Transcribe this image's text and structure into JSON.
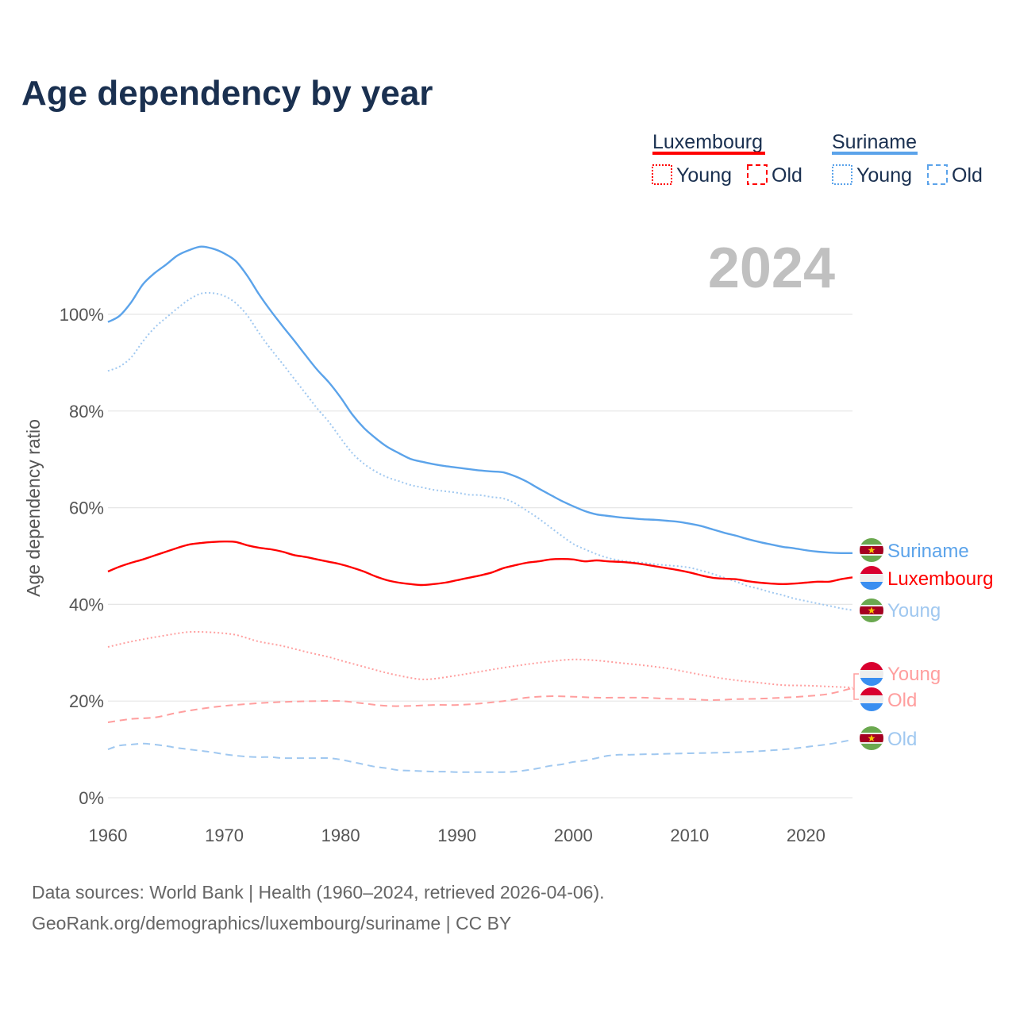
{
  "title": "Age dependency by year",
  "year_display": "2024",
  "legend": {
    "groups": [
      {
        "country": "Luxembourg",
        "color": "#ff0000",
        "items": [
          "Young",
          "Old"
        ]
      },
      {
        "country": "Suriname",
        "color": "#5ba3ea",
        "items": [
          "Young",
          "Old"
        ]
      }
    ]
  },
  "end_labels": {
    "suriname_total": "Suriname",
    "luxembourg_total": "Luxembourg",
    "suriname_young": "Young",
    "luxembourg_young": "Young",
    "luxembourg_old": "Old",
    "suriname_old": "Old"
  },
  "footer": {
    "line1": "Data sources: World Bank | Health (1960–2024, retrieved 2026-04-06).",
    "line2": "GeoRank.org/demographics/luxembourg/suriname | CC BY"
  },
  "chart_data": {
    "type": "line",
    "title": "Age dependency by year",
    "xlabel": "",
    "ylabel": "Age dependency ratio",
    "xlim": [
      1960,
      2024
    ],
    "ylim": [
      0,
      115
    ],
    "x_ticks": [
      "1960",
      "1970",
      "1980",
      "1990",
      "2000",
      "2010",
      "2020"
    ],
    "y_ticks": [
      "0%",
      "20%",
      "40%",
      "60%",
      "80%",
      "100%"
    ],
    "grid": true,
    "legend_position": "top-right",
    "series": [
      {
        "name": "Suriname",
        "style": "solid",
        "color": "#5ba3ea",
        "x": [
          1960,
          1961,
          1962,
          1963,
          1964,
          1965,
          1966,
          1967,
          1968,
          1969,
          1970,
          1971,
          1972,
          1973,
          1974,
          1975,
          1976,
          1977,
          1978,
          1979,
          1980,
          1981,
          1982,
          1983,
          1984,
          1985,
          1986,
          1987,
          1988,
          1989,
          1990,
          1991,
          1992,
          1993,
          1994,
          1995,
          1996,
          1997,
          1998,
          1999,
          2000,
          2001,
          2002,
          2003,
          2004,
          2005,
          2006,
          2007,
          2008,
          2009,
          2010,
          2011,
          2012,
          2013,
          2014,
          2015,
          2016,
          2017,
          2018,
          2019,
          2020,
          2021,
          2022,
          2023,
          2024
        ],
        "y": [
          98.4,
          99.7,
          102.5,
          106.2,
          108.5,
          110.3,
          112.2,
          113.3,
          114,
          113.6,
          112.6,
          111,
          107.9,
          104.1,
          100.7,
          97.6,
          94.6,
          91.5,
          88.5,
          85.9,
          82.8,
          79.3,
          76.5,
          74.4,
          72.6,
          71.3,
          70.1,
          69.5,
          69,
          68.6,
          68.3,
          68,
          67.7,
          67.5,
          67.3,
          66.5,
          65.4,
          64,
          62.7,
          61.4,
          60.3,
          59.3,
          58.6,
          58.3,
          58,
          57.8,
          57.6,
          57.5,
          57.3,
          57.1,
          56.7,
          56.2,
          55.5,
          54.8,
          54.2,
          53.5,
          52.9,
          52.4,
          51.9,
          51.6,
          51.2,
          50.9,
          50.7,
          50.6,
          50.6
        ]
      },
      {
        "name": "Suriname Young",
        "style": "dotted",
        "color": "#a0c8f0",
        "x": [
          1960,
          1961,
          1962,
          1963,
          1964,
          1965,
          1966,
          1967,
          1968,
          1969,
          1970,
          1971,
          1972,
          1973,
          1974,
          1975,
          1976,
          1977,
          1978,
          1979,
          1980,
          1981,
          1982,
          1983,
          1984,
          1985,
          1986,
          1987,
          1988,
          1989,
          1990,
          1991,
          1992,
          1993,
          1994,
          1995,
          1996,
          1997,
          1998,
          1999,
          2000,
          2001,
          2002,
          2003,
          2004,
          2005,
          2006,
          2007,
          2008,
          2009,
          2010,
          2011,
          2012,
          2013,
          2014,
          2015,
          2016,
          2017,
          2018,
          2019,
          2020,
          2021,
          2022,
          2023,
          2024
        ],
        "y": [
          88.3,
          89.2,
          91.1,
          94.4,
          97.2,
          99.3,
          101.3,
          103.1,
          104.3,
          104.4,
          103.8,
          102.3,
          99.7,
          96.1,
          92.8,
          89.8,
          86.7,
          83.6,
          80.5,
          77.7,
          74.4,
          71.3,
          69.1,
          67.5,
          66.3,
          65.5,
          64.7,
          64.2,
          63.7,
          63.4,
          63.1,
          62.7,
          62.6,
          62.2,
          61.9,
          60.9,
          59.4,
          57.8,
          56,
          54.2,
          52.5,
          51.4,
          50.4,
          49.6,
          49.1,
          48.8,
          48.6,
          48.3,
          48.1,
          47.9,
          47.6,
          47,
          46.3,
          45.5,
          44.7,
          43.8,
          43.2,
          42.5,
          41.9,
          41.2,
          40.7,
          40.2,
          39.7,
          39.2,
          38.8
        ]
      },
      {
        "name": "Suriname Old",
        "style": "dashed",
        "color": "#a0c8f0",
        "x": [
          1960,
          1961,
          1962,
          1963,
          1964,
          1965,
          1966,
          1967,
          1968,
          1969,
          1970,
          1971,
          1972,
          1973,
          1974,
          1975,
          1976,
          1977,
          1978,
          1979,
          1980,
          1981,
          1982,
          1983,
          1984,
          1985,
          1986,
          1987,
          1988,
          1989,
          1990,
          1992,
          1994,
          1995,
          1996,
          1997,
          1998,
          1999,
          2000,
          2001,
          2002,
          2003,
          2004,
          2005,
          2006,
          2007,
          2008,
          2010,
          2012,
          2015,
          2017,
          2019,
          2020,
          2022,
          2024
        ],
        "y": [
          10,
          10.8,
          11,
          11.2,
          11,
          10.7,
          10.3,
          10,
          9.7,
          9.4,
          9,
          8.7,
          8.5,
          8.4,
          8.4,
          8.2,
          8.2,
          8.2,
          8.2,
          8.2,
          7.9,
          7.4,
          6.9,
          6.4,
          6.1,
          5.7,
          5.6,
          5.5,
          5.4,
          5.4,
          5.3,
          5.3,
          5.3,
          5.4,
          5.7,
          6.1,
          6.6,
          6.9,
          7.4,
          7.7,
          8.2,
          8.7,
          8.9,
          8.9,
          9,
          9,
          9.1,
          9.2,
          9.3,
          9.5,
          9.8,
          10.2,
          10.5,
          11.1,
          12
        ]
      },
      {
        "name": "Luxembourg",
        "style": "solid",
        "color": "#ff0000",
        "x": [
          1960,
          1961,
          1962,
          1963,
          1964,
          1965,
          1966,
          1967,
          1968,
          1969,
          1970,
          1971,
          1972,
          1973,
          1974,
          1975,
          1976,
          1977,
          1978,
          1979,
          1980,
          1981,
          1982,
          1983,
          1984,
          1985,
          1986,
          1987,
          1988,
          1989,
          1990,
          1991,
          1992,
          1993,
          1994,
          1995,
          1996,
          1997,
          1998,
          1999,
          2000,
          2001,
          2002,
          2003,
          2004,
          2005,
          2006,
          2007,
          2008,
          2009,
          2010,
          2011,
          2012,
          2013,
          2014,
          2015,
          2016,
          2017,
          2018,
          2019,
          2020,
          2021,
          2022,
          2023,
          2024
        ],
        "y": [
          46.8,
          47.8,
          48.6,
          49.3,
          50.1,
          50.9,
          51.7,
          52.4,
          52.7,
          52.9,
          53,
          52.9,
          52.2,
          51.7,
          51.4,
          50.9,
          50.2,
          49.8,
          49.3,
          48.8,
          48.3,
          47.6,
          46.8,
          45.8,
          45,
          44.5,
          44.2,
          44,
          44.2,
          44.5,
          45,
          45.5,
          46,
          46.6,
          47.5,
          48.1,
          48.6,
          48.9,
          49.3,
          49.4,
          49.3,
          48.9,
          49.1,
          48.9,
          48.8,
          48.6,
          48.3,
          47.9,
          47.5,
          47.1,
          46.6,
          46,
          45.5,
          45.3,
          45.2,
          44.8,
          44.5,
          44.3,
          44.2,
          44.3,
          44.5,
          44.7,
          44.7,
          45.2,
          45.6
        ]
      },
      {
        "name": "Luxembourg Young",
        "style": "dotted",
        "color": "#ff9e9e",
        "x": [
          1960,
          1962,
          1964,
          1966,
          1967,
          1968,
          1969,
          1970,
          1971,
          1972,
          1973,
          1975,
          1977,
          1979,
          1980,
          1982,
          1984,
          1986,
          1987,
          1988,
          1990,
          1992,
          1994,
          1996,
          1998,
          2000,
          2002,
          2004,
          2006,
          2008,
          2010,
          2012,
          2014,
          2016,
          2018,
          2020,
          2022,
          2024
        ],
        "y": [
          31.2,
          32.3,
          33.2,
          34,
          34.3,
          34.3,
          34.2,
          34,
          33.7,
          33,
          32.3,
          31.4,
          30.2,
          29.1,
          28.4,
          27.1,
          25.8,
          24.8,
          24.5,
          24.6,
          25.3,
          26.1,
          26.9,
          27.6,
          28.2,
          28.6,
          28.4,
          27.9,
          27.4,
          26.8,
          25.9,
          25,
          24.3,
          23.8,
          23.3,
          23.2,
          23,
          22.8
        ]
      },
      {
        "name": "Luxembourg Old",
        "style": "dashed",
        "color": "#ff9e9e",
        "x": [
          1960,
          1962,
          1964,
          1966,
          1968,
          1970,
          1972,
          1974,
          1976,
          1978,
          1980,
          1982,
          1984,
          1986,
          1988,
          1990,
          1992,
          1994,
          1996,
          1998,
          2000,
          2002,
          2004,
          2006,
          2008,
          2010,
          2012,
          2014,
          2016,
          2018,
          2020,
          2022,
          2024
        ],
        "y": [
          15.6,
          16.3,
          16.6,
          17.6,
          18.4,
          19,
          19.4,
          19.7,
          19.9,
          20,
          20,
          19.5,
          19,
          19,
          19.2,
          19.2,
          19.5,
          20,
          20.7,
          21,
          20.9,
          20.7,
          20.7,
          20.7,
          20.5,
          20.4,
          20.2,
          20.4,
          20.5,
          20.7,
          21,
          21.5,
          22.7
        ]
      }
    ]
  }
}
